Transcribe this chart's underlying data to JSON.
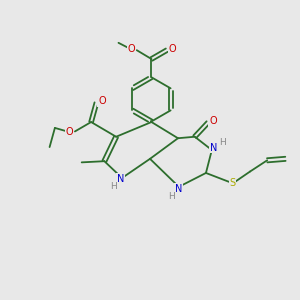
{
  "background_color": "#e8e8e8",
  "bond_color": "#2d6e2d",
  "atom_colors": {
    "O": "#cc0000",
    "N": "#0000cc",
    "S": "#aaaa00",
    "H": "#888888"
  },
  "figsize": [
    3.0,
    3.0
  ],
  "dpi": 100,
  "lw": 1.3,
  "fontsize": 7.0
}
